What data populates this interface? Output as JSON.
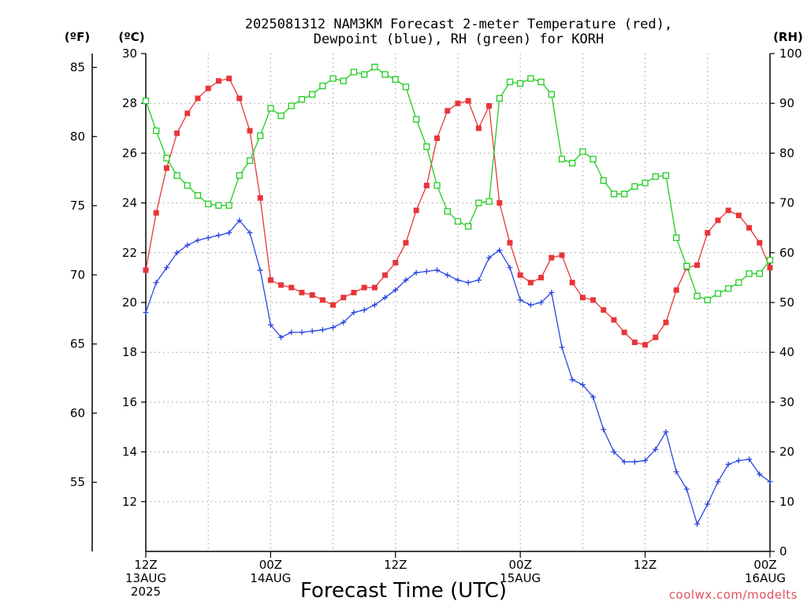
{
  "page": {
    "credit": "coolwx.com/modelts"
  },
  "chart_data": {
    "type": "line",
    "title_lines": [
      "2025081312 NAM3KM Forecast 2-meter Temperature (red),",
      "Dewpoint (blue), RH (green) for KORH"
    ],
    "xlabel": "Forecast Time (UTC)",
    "x_unit": "forecast hour",
    "x_range": [
      0,
      60
    ],
    "x_ticks": [
      {
        "x": 0,
        "lines": [
          "12Z",
          "13AUG",
          "2025"
        ]
      },
      {
        "x": 12,
        "lines": [
          "00Z",
          "14AUG"
        ]
      },
      {
        "x": 24,
        "lines": [
          "12Z"
        ]
      },
      {
        "x": 36,
        "lines": [
          "00Z",
          "15AUG"
        ]
      },
      {
        "x": 48,
        "lines": [
          "12Z"
        ]
      },
      {
        "x": 60,
        "lines": [
          "00Z",
          "16AUG"
        ]
      }
    ],
    "axes": {
      "fahrenheit": {
        "label": "(ºF)",
        "ticks": [
          55,
          60,
          65,
          70,
          75,
          80,
          85
        ]
      },
      "celsius": {
        "label": "(ºC)",
        "range": [
          10,
          30
        ],
        "ticks": [
          12,
          14,
          16,
          18,
          20,
          22,
          24,
          26,
          28,
          30
        ]
      },
      "rh": {
        "label": "(RH)",
        "range": [
          0,
          100
        ],
        "ticks": [
          0,
          10,
          20,
          30,
          40,
          50,
          60,
          70,
          80,
          90,
          100
        ]
      }
    },
    "grid": true,
    "series": [
      {
        "name": "Temperature",
        "axis": "celsius",
        "color": "#e8353a",
        "marker": "filled-square",
        "x": [
          0,
          1,
          2,
          3,
          4,
          5,
          6,
          7,
          8,
          9,
          10,
          11,
          12,
          13,
          14,
          15,
          16,
          17,
          18,
          19,
          20,
          21,
          22,
          23,
          24,
          25,
          26,
          27,
          28,
          29,
          30,
          31,
          32,
          33,
          34,
          35,
          36,
          37,
          38,
          39,
          40,
          41,
          42,
          43,
          44,
          45,
          46,
          47,
          48,
          49,
          50,
          51,
          52,
          53,
          54,
          55,
          56,
          57,
          58,
          59,
          60
        ],
        "values": [
          21.3,
          23.6,
          25.4,
          26.8,
          27.6,
          28.2,
          28.6,
          28.9,
          29.0,
          28.2,
          26.9,
          24.2,
          20.9,
          20.7,
          20.6,
          20.4,
          20.3,
          20.1,
          19.9,
          20.2,
          20.4,
          20.6,
          20.6,
          21.1,
          21.6,
          22.4,
          23.7,
          24.7,
          26.6,
          27.7,
          28.0,
          28.1,
          27.0,
          27.9,
          24.0,
          22.4,
          21.1,
          20.8,
          21.0,
          21.8,
          21.9,
          20.8,
          20.2,
          20.1,
          19.7,
          19.3,
          18.8,
          18.4,
          18.3,
          18.6,
          19.2,
          20.5,
          21.4,
          21.5,
          22.8,
          23.3,
          23.7,
          23.5,
          23.0,
          22.4,
          21.4
        ]
      },
      {
        "name": "Dewpoint",
        "axis": "celsius",
        "color": "#2a46e0",
        "marker": "plus",
        "x": [
          0,
          1,
          2,
          3,
          4,
          5,
          6,
          7,
          8,
          9,
          10,
          11,
          12,
          13,
          14,
          15,
          16,
          17,
          18,
          19,
          20,
          21,
          22,
          23,
          24,
          25,
          26,
          27,
          28,
          29,
          30,
          31,
          32,
          33,
          34,
          35,
          36,
          37,
          38,
          39,
          40,
          41,
          42,
          43,
          44,
          45,
          46,
          47,
          48,
          49,
          50,
          51,
          52,
          53,
          54,
          55,
          56,
          57,
          58,
          59,
          60
        ],
        "values": [
          19.6,
          20.8,
          21.4,
          22.0,
          22.3,
          22.5,
          22.6,
          22.7,
          22.8,
          23.3,
          22.8,
          21.3,
          19.1,
          18.6,
          18.8,
          18.8,
          18.85,
          18.9,
          19.0,
          19.2,
          19.6,
          19.7,
          19.9,
          20.2,
          20.5,
          20.9,
          21.2,
          21.25,
          21.3,
          21.1,
          20.9,
          20.8,
          20.9,
          21.8,
          22.1,
          21.4,
          20.1,
          19.9,
          20.0,
          20.4,
          18.2,
          16.9,
          16.7,
          16.2,
          14.9,
          14.0,
          13.6,
          13.6,
          13.65,
          14.1,
          14.8,
          13.2,
          12.5,
          11.1,
          11.9,
          12.8,
          13.5,
          13.65,
          13.7,
          13.1,
          12.8
        ]
      },
      {
        "name": "RH",
        "axis": "rh",
        "color": "#22cc22",
        "marker": "open-square",
        "x": [
          0,
          1,
          2,
          3,
          4,
          5,
          6,
          7,
          8,
          9,
          10,
          11,
          12,
          13,
          14,
          15,
          16,
          17,
          18,
          19,
          20,
          21,
          22,
          23,
          24,
          25,
          26,
          27,
          28,
          29,
          30,
          31,
          32,
          33,
          34,
          35,
          36,
          37,
          38,
          39,
          40,
          41,
          42,
          43,
          44,
          45,
          46,
          47,
          48,
          49,
          50,
          51,
          52,
          53,
          54,
          55,
          56,
          57,
          58,
          59,
          60
        ],
        "values": [
          90.5,
          84.5,
          79.0,
          75.5,
          73.5,
          71.5,
          69.8,
          69.5,
          69.5,
          75.5,
          78.5,
          83.5,
          89.0,
          87.5,
          89.5,
          90.8,
          91.8,
          93.5,
          95.0,
          94.5,
          96.3,
          95.8,
          97.3,
          95.8,
          94.8,
          93.3,
          86.8,
          81.3,
          73.5,
          68.3,
          66.3,
          65.3,
          70.0,
          70.3,
          91.0,
          94.3,
          94.0,
          95.0,
          94.3,
          91.8,
          78.8,
          78.0,
          80.3,
          78.8,
          74.5,
          71.8,
          71.8,
          73.3,
          74.0,
          75.3,
          75.5,
          63.0,
          57.3,
          51.3,
          50.5,
          51.8,
          52.8,
          54.0,
          55.8,
          55.8,
          58.5
        ]
      }
    ]
  }
}
